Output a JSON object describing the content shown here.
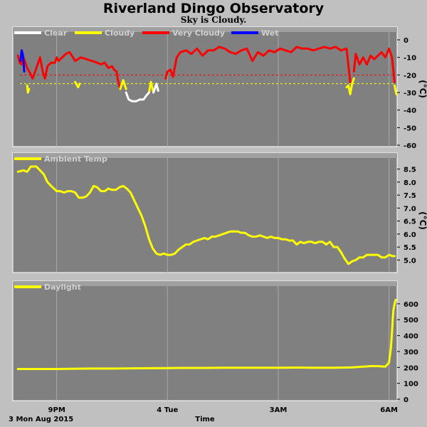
{
  "header": {
    "title": "Riverland Dingo Observatory",
    "subtitle": "Sky is Cloudy."
  },
  "footer": {
    "date": "3 Mon Aug 2015",
    "xlabel": "Time"
  },
  "colors": {
    "background": "#c0c0c0",
    "panel": "#808080",
    "grid": "#a8a8a8",
    "clear": "#ffffff",
    "cloudy": "#ffff00",
    "very_cloudy": "#ff0000",
    "wet": "#0000ff",
    "threshold": "#ffff00"
  },
  "chart_data": [
    {
      "type": "line",
      "ylabel": "(°C)",
      "ylim": [
        -60,
        0
      ],
      "yticks": [
        0,
        -10,
        -20,
        -30,
        -40,
        -50,
        -60
      ],
      "xlim": [
        19.85,
        30.2
      ],
      "xticks": [
        {
          "x": 21,
          "label": "9PM"
        },
        {
          "x": 24,
          "label": "4 Tue"
        },
        {
          "x": 27,
          "label": "3AM"
        },
        {
          "x": 30,
          "label": "6AM"
        }
      ],
      "legend": [
        "Clear",
        "Cloudy",
        "Very Cloudy",
        "Wet"
      ],
      "thresholds": [
        -20,
        -25
      ],
      "series": [
        {
          "name": "Very Cloudy",
          "color": "#ff0000",
          "x": [
            19.95,
            20.0,
            20.05,
            20.1,
            20.2,
            20.28,
            20.35,
            20.45,
            20.55,
            20.62,
            20.68,
            20.75,
            20.85,
            20.95,
            21.0,
            21.05,
            21.15,
            21.25,
            21.35,
            21.5,
            21.65,
            21.8,
            21.95,
            22.1,
            22.2,
            22.3,
            22.4,
            22.5,
            22.55,
            22.62,
            22.65,
            22.72
          ],
          "y": [
            -9,
            -13,
            -14,
            -10,
            -16,
            -19,
            -22,
            -16,
            -10,
            -18,
            -22,
            -15,
            -13,
            -13,
            -10,
            -12,
            -10,
            -8,
            -7,
            -12,
            -10,
            -11,
            -12,
            -13,
            -14,
            -13,
            -16,
            -15,
            -17,
            -18,
            -22,
            -28
          ]
        },
        {
          "name": "Very Cloudy",
          "color": "#ff0000",
          "x": [
            23.95,
            24.0,
            24.08,
            24.15,
            24.25,
            24.35,
            24.5,
            24.65,
            24.8,
            24.95,
            25.1,
            25.25,
            25.4,
            25.55,
            25.7,
            25.85,
            26.0,
            26.15,
            26.3,
            26.45,
            26.6,
            26.75,
            26.9,
            27.05,
            27.2,
            27.35,
            27.5,
            27.65,
            27.8,
            27.95,
            28.1,
            28.25,
            28.4,
            28.55,
            28.7,
            28.85,
            28.95
          ],
          "y": [
            -22,
            -18,
            -17,
            -21,
            -10,
            -7,
            -6,
            -8,
            -5,
            -9,
            -6,
            -6,
            -4,
            -5,
            -7,
            -8,
            -6,
            -5,
            -12,
            -7,
            -9,
            -6,
            -7,
            -5,
            -6,
            -7,
            -4,
            -5,
            -5,
            -6,
            -5,
            -4,
            -5,
            -4,
            -6,
            -5,
            -24
          ]
        },
        {
          "name": "Very Cloudy",
          "color": "#ff0000",
          "x": [
            29.05,
            29.1,
            29.2,
            29.3,
            29.4,
            29.5,
            29.6,
            29.7,
            29.8,
            29.9,
            30.0,
            30.08,
            30.15
          ],
          "y": [
            -18,
            -8,
            -14,
            -10,
            -14,
            -9,
            -11,
            -9,
            -7,
            -10,
            -5,
            -10,
            -24
          ]
        }
      ],
      "series_cloudy": [
        {
          "name": "Cloudy",
          "color": "#ffff00",
          "x": [
            20.2,
            20.22,
            20.25
          ],
          "y": [
            -26,
            -30,
            -28
          ]
        },
        {
          "name": "Cloudy",
          "color": "#ffff00",
          "x": [
            21.5,
            21.58,
            21.62
          ],
          "y": [
            -24,
            -27,
            -25
          ]
        },
        {
          "name": "Cloudy",
          "color": "#ffff00",
          "x": [
            22.72,
            22.8,
            22.88
          ],
          "y": [
            -28,
            -23,
            -28
          ]
        },
        {
          "name": "Cloudy",
          "color": "#ffff00",
          "x": [
            23.5,
            23.55,
            23.62
          ],
          "y": [
            -30,
            -24,
            -30
          ]
        },
        {
          "name": "Cloudy",
          "color": "#ffff00",
          "x": [
            28.85,
            28.9,
            28.95,
            29.0,
            29.05
          ],
          "y": [
            -27,
            -26,
            -31,
            -25,
            -22
          ]
        },
        {
          "name": "Cloudy",
          "color": "#ffff00",
          "x": [
            30.15,
            30.2
          ],
          "y": [
            -26,
            -31
          ]
        }
      ],
      "series_clear": [
        {
          "name": "Clear",
          "color": "#ffffff",
          "x": [
            22.88,
            22.95,
            23.05,
            23.15,
            23.25,
            23.35,
            23.42,
            23.5
          ],
          "y": [
            -30,
            -34,
            -35,
            -35,
            -34,
            -34,
            -32,
            -30
          ]
        },
        {
          "name": "Clear",
          "color": "#ffffff",
          "x": [
            23.62,
            23.7,
            23.75
          ],
          "y": [
            -30,
            -25,
            -29
          ]
        }
      ],
      "series_wet": [
        {
          "name": "Wet",
          "color": "#0000ff",
          "x": [
            20.02,
            20.05,
            20.08,
            20.1,
            20.12
          ],
          "y": [
            -12,
            -6,
            -8,
            -12,
            -18
          ]
        }
      ]
    },
    {
      "type": "line",
      "ylabel": "(°C)",
      "ylim": [
        4.6,
        8.9
      ],
      "yticks": [
        8.5,
        8.0,
        7.5,
        7.0,
        6.5,
        6.0,
        5.5,
        5.0
      ],
      "xlim": [
        19.85,
        30.2
      ],
      "legend": [
        "Ambient Temp"
      ],
      "series": [
        {
          "name": "Ambient Temp",
          "color": "#ffff00",
          "x": [
            19.95,
            20.1,
            20.2,
            20.3,
            20.45,
            20.55,
            20.65,
            20.75,
            20.85,
            21.0,
            21.1,
            21.2,
            21.3,
            21.4,
            21.5,
            21.6,
            21.7,
            21.8,
            21.9,
            22.0,
            22.1,
            22.2,
            22.3,
            22.4,
            22.5,
            22.6,
            22.7,
            22.8,
            22.9,
            23.0,
            23.1,
            23.2,
            23.3,
            23.4,
            23.5,
            23.6,
            23.7,
            23.8,
            23.9,
            24.0,
            24.1,
            24.2,
            24.3,
            24.4,
            24.5,
            24.6,
            24.7,
            24.8,
            24.9,
            25.0,
            25.1,
            25.2,
            25.3,
            25.4,
            25.5,
            25.6,
            25.7,
            25.8,
            25.9,
            26.0,
            26.1,
            26.2,
            26.3,
            26.4,
            26.5,
            26.6,
            26.7,
            26.8,
            26.9,
            27.0,
            27.1,
            27.2,
            27.3,
            27.4,
            27.5,
            27.6,
            27.7,
            27.8,
            27.9,
            28.0,
            28.1,
            28.2,
            28.3,
            28.4,
            28.5,
            28.6,
            28.7,
            28.8,
            28.9,
            29.0,
            29.1,
            29.2,
            29.3,
            29.4,
            29.5,
            29.6,
            29.7,
            29.8,
            29.9,
            30.0,
            30.1,
            30.15
          ],
          "y": [
            8.4,
            8.45,
            8.4,
            8.6,
            8.6,
            8.45,
            8.3,
            8.0,
            7.85,
            7.65,
            7.65,
            7.6,
            7.65,
            7.65,
            7.6,
            7.4,
            7.4,
            7.45,
            7.6,
            7.85,
            7.8,
            7.65,
            7.65,
            7.75,
            7.7,
            7.7,
            7.8,
            7.85,
            7.75,
            7.6,
            7.3,
            7.0,
            6.7,
            6.3,
            5.8,
            5.45,
            5.25,
            5.2,
            5.25,
            5.2,
            5.2,
            5.25,
            5.4,
            5.5,
            5.6,
            5.6,
            5.7,
            5.75,
            5.8,
            5.85,
            5.8,
            5.9,
            5.9,
            5.95,
            6.0,
            6.05,
            6.1,
            6.1,
            6.1,
            6.05,
            6.05,
            5.95,
            5.9,
            5.9,
            5.95,
            5.9,
            5.85,
            5.9,
            5.85,
            5.85,
            5.8,
            5.8,
            5.75,
            5.75,
            5.6,
            5.7,
            5.65,
            5.7,
            5.7,
            5.65,
            5.7,
            5.7,
            5.6,
            5.7,
            5.5,
            5.5,
            5.3,
            5.05,
            4.85,
            4.95,
            5.0,
            5.1,
            5.1,
            5.2,
            5.2,
            5.2,
            5.2,
            5.1,
            5.1,
            5.2,
            5.15,
            5.15
          ]
        }
      ]
    },
    {
      "type": "line",
      "ylim": [
        0,
        680
      ],
      "yticks": [
        600,
        500,
        400,
        300,
        200,
        100,
        0
      ],
      "xlim": [
        19.85,
        30.2
      ],
      "xticks": [
        {
          "x": 21,
          "label": "9PM"
        },
        {
          "x": 24,
          "label": "4 Tue"
        },
        {
          "x": 27,
          "label": "3AM"
        },
        {
          "x": 30,
          "label": "6AM"
        }
      ],
      "legend": [
        "Daylight"
      ],
      "series": [
        {
          "name": "Daylight",
          "color": "#ffff00",
          "x": [
            19.95,
            20.5,
            21.0,
            21.5,
            22.0,
            22.5,
            23.0,
            23.5,
            24.0,
            24.5,
            25.0,
            25.5,
            26.0,
            26.5,
            27.0,
            27.5,
            28.0,
            28.5,
            29.0,
            29.3,
            29.5,
            29.7,
            29.9,
            30.0,
            30.05,
            30.08,
            30.1,
            30.12,
            30.15,
            30.18
          ],
          "y": [
            190,
            190,
            190,
            192,
            193,
            193,
            194,
            195,
            196,
            197,
            197,
            198,
            198,
            198,
            198,
            199,
            198,
            198,
            200,
            205,
            208,
            208,
            205,
            230,
            320,
            420,
            500,
            560,
            600,
            625
          ]
        }
      ]
    }
  ]
}
